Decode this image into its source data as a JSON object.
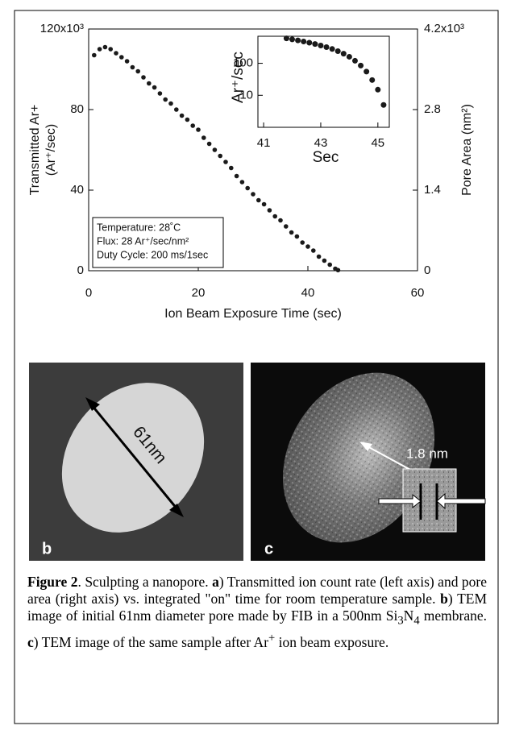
{
  "chart_data": [
    {
      "type": "scatter",
      "ylabel": [
        "Transmitted Ar+",
        "(Ar⁺/sec)"
      ],
      "y2label": "Pore Area (nm²)",
      "xlabel": "Ion Beam Exposure Time (sec)",
      "x": [
        1,
        2,
        3,
        4,
        5,
        6,
        7,
        8,
        9,
        10,
        11,
        12,
        13,
        14,
        15,
        16,
        17,
        18,
        19,
        20,
        21,
        22,
        23,
        24,
        25,
        26,
        27,
        28,
        29,
        30,
        31,
        32,
        33,
        34,
        35,
        36,
        37,
        38,
        39,
        40,
        41,
        42,
        43,
        44,
        45,
        45.5
      ],
      "values": [
        107,
        110,
        111,
        110,
        108,
        106,
        104,
        101,
        99,
        96,
        93,
        91,
        88,
        85,
        83,
        80,
        77,
        75,
        72,
        70,
        66,
        63,
        60,
        57,
        54,
        51,
        47,
        44,
        41,
        38,
        35,
        33,
        30,
        27,
        25,
        22,
        19,
        17,
        14,
        12,
        10,
        7,
        5,
        3,
        1,
        0.3
      ],
      "color": "#1a1a1a",
      "xlim": [
        0,
        60
      ],
      "xticks": [
        0,
        20,
        40,
        60
      ],
      "ylim": [
        0,
        120
      ],
      "yticks": [
        0,
        40,
        80,
        {
          "value": 120,
          "label": "120x10³"
        }
      ],
      "y2lim": [
        0,
        4.2
      ],
      "y2ticks": [
        0,
        1.4,
        2.8,
        {
          "value": 4.2,
          "label": "4.2x10³"
        }
      ],
      "grid": false,
      "annotations": [
        "Temperature: 28˚C",
        "Flux: 28 Ar⁺/sec/nm²",
        "Duty Cycle: 200 ms/1sec"
      ]
    },
    {
      "type": "scatter",
      "ylabel": "Ar⁺/sec",
      "xlabel": "Sec",
      "x": [
        41.8,
        42,
        42.2,
        42.4,
        42.6,
        42.8,
        43,
        43.2,
        43.4,
        43.6,
        43.8,
        44,
        44.2,
        44.4,
        44.6,
        44.8,
        45,
        45.2
      ],
      "values": [
        600,
        560,
        520,
        480,
        440,
        400,
        360,
        320,
        280,
        240,
        200,
        160,
        120,
        85,
        55,
        30,
        15,
        5
      ],
      "color": "#1a1a1a",
      "xlim": [
        40.8,
        45.4
      ],
      "xticks": [
        41,
        43,
        45
      ],
      "ylim": [
        1,
        700
      ],
      "yticks": [
        10,
        100
      ],
      "log_y": true
    }
  ],
  "panels": {
    "b": {
      "label": "b",
      "scale": "61nm"
    },
    "c": {
      "label": "c",
      "scale": "1.8 nm"
    }
  },
  "caption": [
    "Figure 2",
    ". Sculpting a nanopore.  ",
    "a",
    ") Transmitted ion count rate (left axis) and pore area (right axis) vs. integrated \"on\" time for room temperature sample.  ",
    "b",
    ") TEM image of initial 61nm diameter pore made by FIB in a 500nm Si",
    "3",
    "N",
    "4",
    " membrane. ",
    "c",
    ") TEM image of the same sample after Ar",
    "+",
    " ion beam exposure."
  ]
}
